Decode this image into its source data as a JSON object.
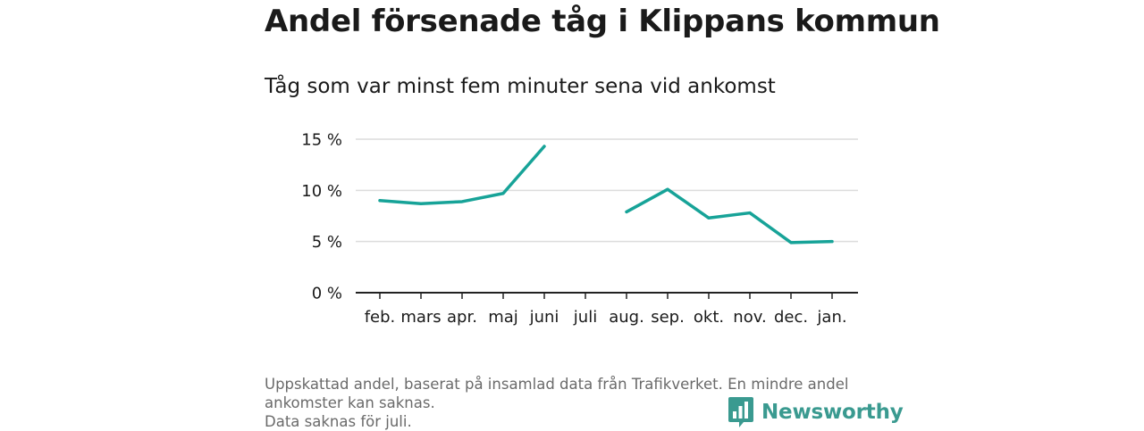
{
  "title": "Andel försenade tåg i Klippans kommun",
  "subtitle": "Tåg som var minst fem minuter sena vid ankomst",
  "footnote": {
    "line1": "Uppskattad andel, baserat på insamlad data från Trafikverket. En mindre andel ankomster kan saknas.",
    "line2": "Data saknas för juli."
  },
  "brand": {
    "name": "Newsworthy",
    "icon": "bar-chart-speech-bubble-icon",
    "color": "#3a9a90"
  },
  "chart_data": {
    "type": "line",
    "title": "Andel försenade tåg i Klippans kommun",
    "subtitle": "Tåg som var minst fem minuter sena vid ankomst",
    "categories": [
      "feb.",
      "mars",
      "apr.",
      "maj",
      "juni",
      "juli",
      "aug.",
      "sep.",
      "okt.",
      "nov.",
      "dec.",
      "jan."
    ],
    "series": [
      {
        "values": [
          9.0,
          8.7,
          8.9,
          9.7,
          14.3,
          null,
          7.9,
          10.1,
          7.3,
          7.8,
          4.9,
          5.0
        ],
        "color": "#17a398"
      }
    ],
    "ylim": [
      0,
      15
    ],
    "yticks": [
      0,
      5,
      10,
      15
    ],
    "ytick_labels": [
      "0 %",
      "5 %",
      "10 %",
      "15 %"
    ],
    "grid": true
  }
}
